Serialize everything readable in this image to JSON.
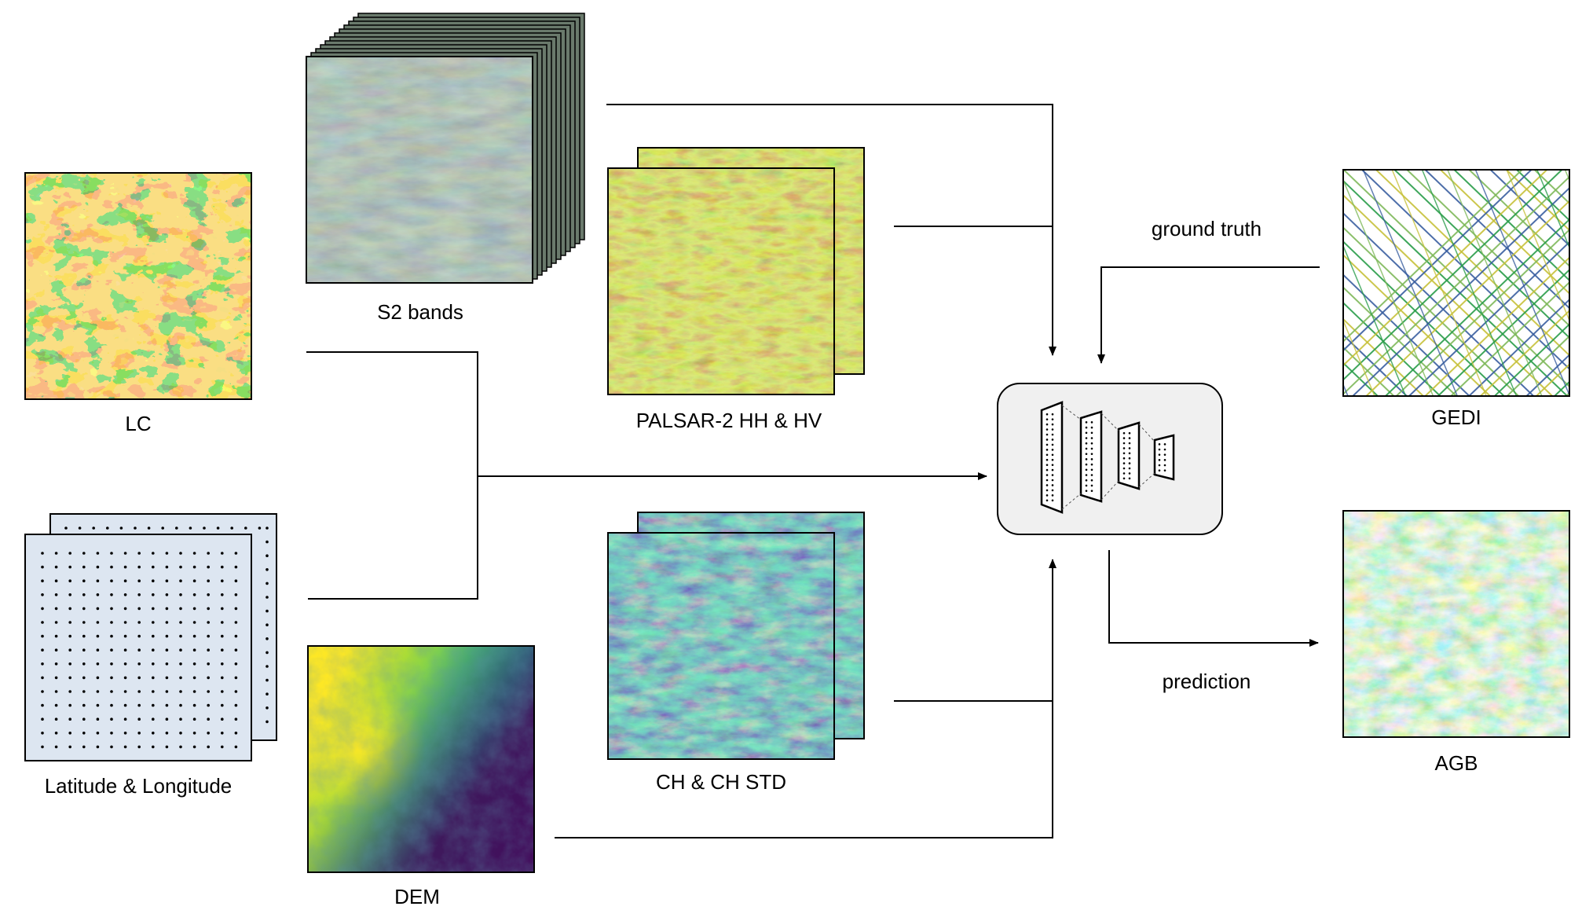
{
  "labels": {
    "lc": "LC",
    "s2": "S2 bands",
    "palsar": "PALSAR-2 HH & HV",
    "latlon": "Latitude & Longitude",
    "dem": "DEM",
    "ch": "CH & CH STD",
    "gedi": "GEDI",
    "agb": "AGB",
    "ground_truth": "ground truth",
    "prediction": "prediction"
  },
  "icons": {
    "model": "neural-network-icon"
  },
  "colors": {
    "lc_palette": [
      "#f6b93b",
      "#5c9e2b",
      "#3f7d1e",
      "#e9ec4f"
    ],
    "palsar_palette": [
      "#8fbf2a",
      "#5a6a10",
      "#b9d44a",
      "#a0522d"
    ],
    "ch_palette": [
      "#3a8a8c",
      "#2a4f7a",
      "#6fce6a",
      "#2d1a4e"
    ],
    "dem_palette": [
      "#fde725",
      "#5ec962",
      "#21918c",
      "#3b528b",
      "#440154"
    ],
    "gedi_palette": [
      "#2a9d4a",
      "#7fb95a",
      "#3a5fa0",
      "#c7c13a"
    ],
    "agb_palette": [
      "#2f8a3a",
      "#6cbf6a",
      "#bfe6b5",
      "#ffffff"
    ],
    "model_box_fill": "#f0f0f0"
  }
}
